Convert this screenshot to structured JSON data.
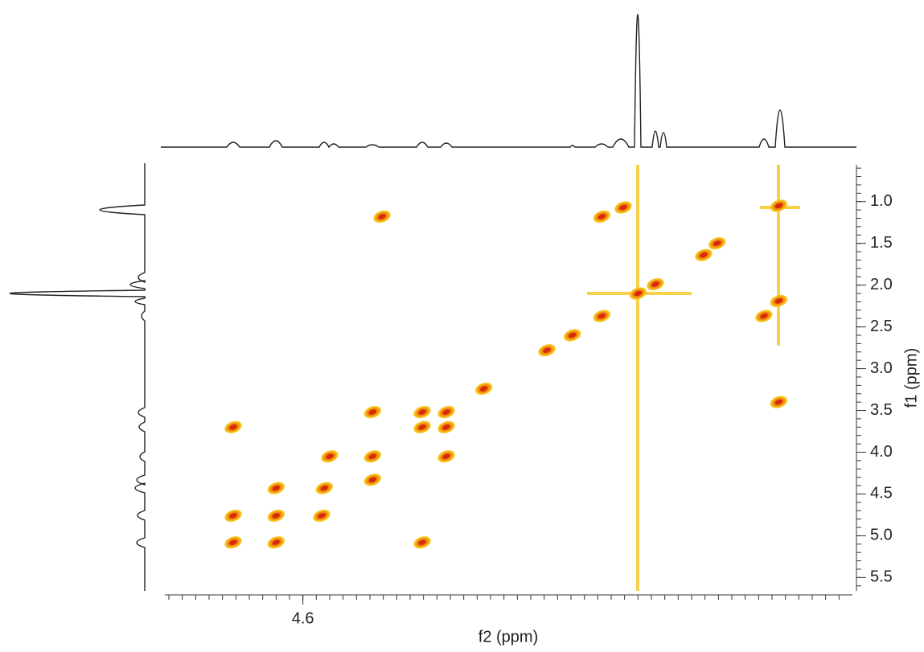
{
  "chart_data": {
    "type": "scatter",
    "xlabel": "f2 (ppm)",
    "ylabel": "f1 (ppm)",
    "xlim": [
      5.63,
      0.5
    ],
    "ylim": [
      0.56,
      5.66
    ],
    "xticks": [
      4.6
    ],
    "xminor_ticks": [
      5.6,
      5.5,
      5.4,
      5.3,
      5.2,
      5.1,
      5.0,
      4.9,
      4.8,
      4.7,
      4.6,
      4.5,
      4.4,
      4.3,
      4.2,
      4.1,
      4.0,
      3.9,
      3.8,
      3.7,
      3.6,
      3.5,
      3.4,
      3.3,
      3.2,
      3.1,
      3.0,
      2.9,
      2.8,
      2.7,
      2.6,
      2.5,
      2.4,
      2.3,
      2.2,
      2.1,
      2.0,
      1.9,
      1.8,
      1.7,
      1.6,
      1.5,
      1.4,
      1.3,
      1.2,
      1.1,
      1.0,
      0.9,
      0.8,
      0.7,
      0.6
    ],
    "yticks": [
      {
        "value": 1.0,
        "label": "1.0"
      },
      1.5,
      {
        "value": 2.0,
        "label": "2.0"
      },
      2.5,
      {
        "value": 3.0,
        "label": "3.0"
      },
      3.5,
      {
        "value": 4.0,
        "label": "4.0"
      },
      4.5,
      {
        "value": 5.0,
        "label": "5.0"
      },
      5.5
    ],
    "yminor_ticks": [
      0.6,
      0.7,
      0.8,
      0.9,
      1.0,
      1.1,
      1.2,
      1.3,
      1.4,
      1.5,
      1.6,
      1.7,
      1.8,
      1.9,
      2.0,
      2.1,
      2.2,
      2.3,
      2.4,
      2.5,
      2.6,
      2.7,
      2.8,
      2.9,
      3.0,
      3.1,
      3.2,
      3.3,
      3.4,
      3.5,
      3.6,
      3.7,
      3.8,
      3.9,
      4.0,
      4.1,
      4.2,
      4.3,
      4.4,
      4.5,
      4.6,
      4.7,
      4.8,
      4.9,
      5.0,
      5.1,
      5.2,
      5.3,
      5.4,
      5.5,
      5.6
    ],
    "series": [
      {
        "color": "#d92b0c",
        "x": [
          5.12,
          5.12,
          5.12,
          4.8,
          4.8,
          4.8,
          4.44,
          4.46,
          4.4,
          4.08,
          4.08,
          4.08,
          3.71,
          3.71,
          3.71,
          3.53,
          3.53,
          3.53,
          4.01,
          2.37,
          2.21,
          1.05,
          1.16,
          1.05,
          1.05,
          2.1,
          2.37,
          1.97,
          1.61,
          1.51,
          2.59,
          2.78,
          3.25
        ],
        "values": [
          3.7,
          4.76,
          5.08,
          4.43,
          4.76,
          5.08,
          4.43,
          4.76,
          4.05,
          3.52,
          4.05,
          4.33,
          3.52,
          3.7,
          5.08,
          3.52,
          3.7,
          4.05,
          1.18,
          1.18,
          1.07,
          1.05,
          2.37,
          2.19,
          3.4,
          2.1,
          2.37,
          1.99,
          1.64,
          1.5,
          2.6,
          2.78,
          3.24
        ]
      }
    ]
  }
}
